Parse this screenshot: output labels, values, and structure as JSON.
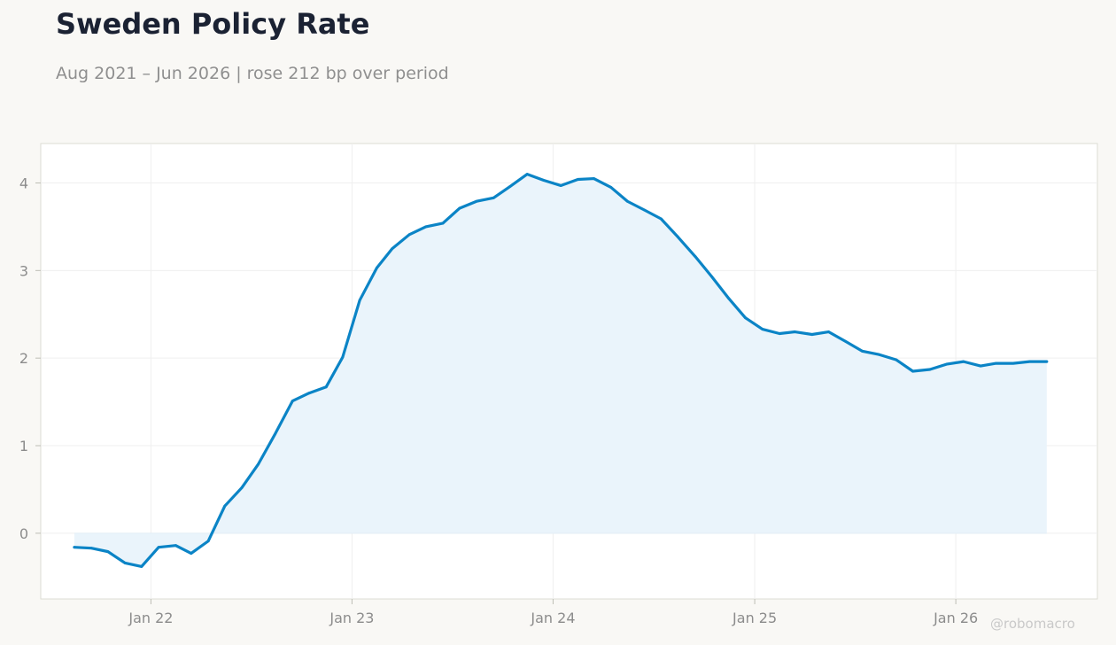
{
  "header": {
    "title": "Sweden Policy Rate",
    "subtitle": "Aug 2021 – Jun 2026 | rose 212 bp over period"
  },
  "watermark": "@robomacro",
  "colors": {
    "line": "#0b84c6",
    "fill": "#e9f3fb",
    "grid": "#efefef",
    "background": "#f9f8f5",
    "plot_background": "#ffffff"
  },
  "chart_data": {
    "type": "area",
    "title": "Sweden Policy Rate",
    "subtitle": "Aug 2021 – Jun 2026 | rose 212 bp over period",
    "xlabel": "",
    "ylabel": "",
    "grid": true,
    "legend": "none",
    "ylim": [
      -0.75,
      4.45
    ],
    "xlim": [
      "2021-06-15",
      "2026-09-15"
    ],
    "y_ticks": [
      0,
      1,
      2,
      3,
      4
    ],
    "x_ticks": [
      {
        "label": "Jan 22",
        "date": "2022-01-01"
      },
      {
        "label": "Jan 23",
        "date": "2023-01-01"
      },
      {
        "label": "Jan 24",
        "date": "2024-01-01"
      },
      {
        "label": "Jan 25",
        "date": "2025-01-01"
      },
      {
        "label": "Jan 26",
        "date": "2026-01-01"
      }
    ],
    "series": [
      {
        "x": [
          "2021-08",
          "2021-09",
          "2021-10",
          "2021-11",
          "2021-12",
          "2022-01",
          "2022-02",
          "2022-03",
          "2022-04",
          "2022-05",
          "2022-06",
          "2022-07",
          "2022-08",
          "2022-09",
          "2022-10",
          "2022-11",
          "2022-12",
          "2023-01",
          "2023-02",
          "2023-03",
          "2023-04",
          "2023-05",
          "2023-06",
          "2023-07",
          "2023-08",
          "2023-09",
          "2023-10",
          "2023-11",
          "2023-12",
          "2024-01",
          "2024-02",
          "2024-03",
          "2024-04",
          "2024-05",
          "2024-06",
          "2024-07",
          "2024-08",
          "2024-09",
          "2024-10",
          "2024-11",
          "2024-12",
          "2025-01",
          "2025-02",
          "2025-03",
          "2025-04",
          "2025-05",
          "2025-06",
          "2025-07",
          "2025-08",
          "2025-09",
          "2025-10",
          "2025-11",
          "2025-12",
          "2026-01",
          "2026-02",
          "2026-03",
          "2026-04",
          "2026-05",
          "2026-06"
        ],
        "values": [
          -0.16,
          -0.17,
          -0.21,
          -0.34,
          -0.38,
          -0.16,
          -0.14,
          -0.23,
          -0.09,
          0.31,
          0.52,
          0.79,
          1.14,
          1.51,
          1.6,
          1.67,
          2.01,
          2.66,
          3.03,
          3.25,
          3.41,
          3.5,
          3.54,
          3.71,
          3.79,
          3.83,
          3.96,
          4.1,
          4.03,
          3.97,
          4.04,
          4.05,
          3.95,
          3.79,
          3.69,
          3.59,
          3.38,
          3.16,
          2.93,
          2.68,
          2.46,
          2.33,
          2.28,
          2.3,
          2.27,
          2.3,
          2.19,
          2.08,
          2.04,
          1.98,
          1.85,
          1.87,
          1.93,
          1.96,
          1.91,
          1.94,
          1.94,
          1.96,
          1.96
        ]
      }
    ]
  }
}
